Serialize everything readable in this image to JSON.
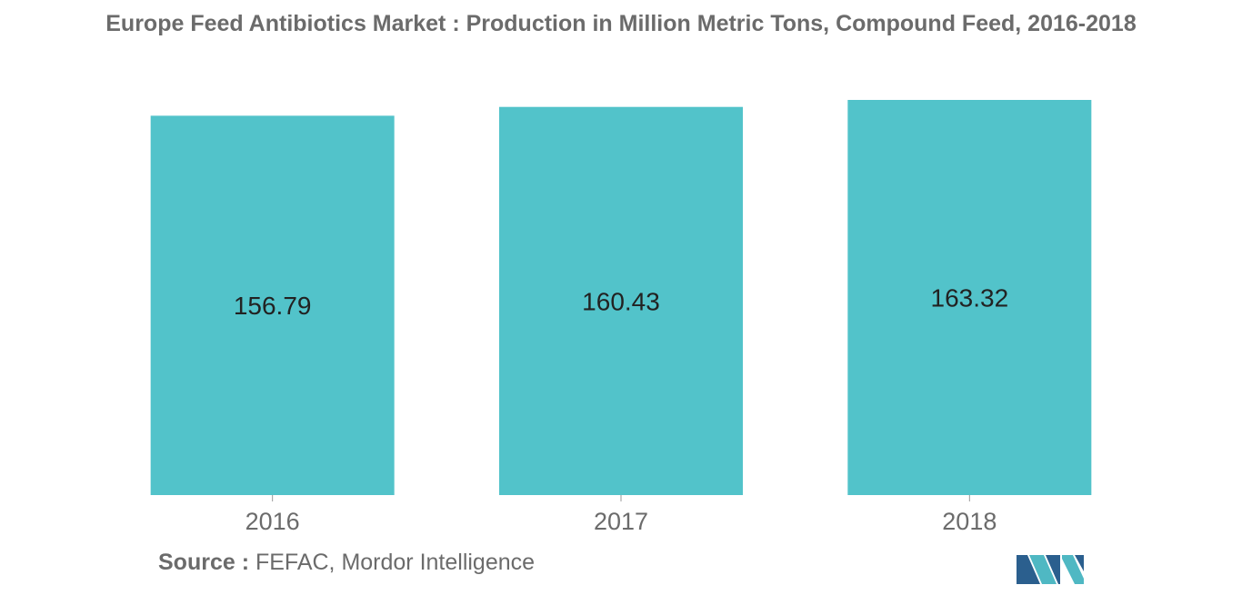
{
  "chart_data": {
    "type": "bar",
    "title": "Europe Feed Antibiotics Market : Production in Million Metric Tons, Compound Feed, 2016-2018",
    "categories": [
      "2016",
      "2017",
      "2018"
    ],
    "values": [
      156.79,
      160.43,
      163.32
    ],
    "value_labels": [
      "156.79",
      "160.43",
      "163.32"
    ],
    "xlabel": "",
    "ylabel": "",
    "ylim": [
      0,
      170
    ],
    "grid": false,
    "legend": "none"
  },
  "source": {
    "label": "Source :",
    "text": "FEFAC, Mordor Intelligence"
  },
  "colors": {
    "bar": "#52c3ca",
    "text": "#6b6b6b",
    "value_label": "#222222",
    "logo_dark": "#2b5f8e",
    "logo_light": "#4fb8c3"
  },
  "logo": {
    "icon": "mordor-intelligence-logo-icon"
  }
}
